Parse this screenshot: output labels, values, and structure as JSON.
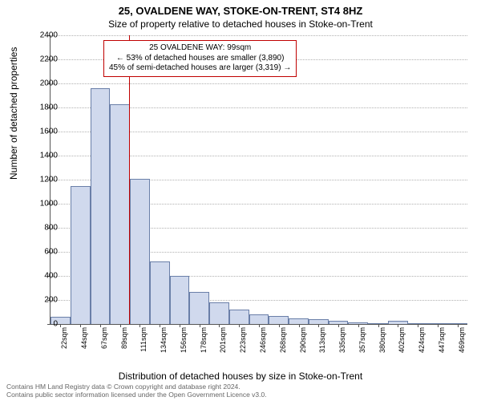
{
  "title": "25, OVALDENE WAY, STOKE-ON-TRENT, ST4 8HZ",
  "subtitle": "Size of property relative to detached houses in Stoke-on-Trent",
  "ylabel": "Number of detached properties",
  "xlabel": "Distribution of detached houses by size in Stoke-on-Trent",
  "chart": {
    "type": "histogram",
    "ylim": [
      0,
      2400
    ],
    "ytick_step": 200,
    "yticks": [
      0,
      200,
      400,
      600,
      800,
      1000,
      1200,
      1400,
      1600,
      1800,
      2000,
      2200,
      2400
    ],
    "bar_fill": "#d0d9ed",
    "bar_stroke": "#6a7fa8",
    "grid_color": "#b0b0b0",
    "background": "#ffffff",
    "bar_width_ratio": 1.0,
    "categories": [
      "22sqm",
      "44sqm",
      "67sqm",
      "89sqm",
      "111sqm",
      "134sqm",
      "156sqm",
      "178sqm",
      "201sqm",
      "223sqm",
      "246sqm",
      "268sqm",
      "290sqm",
      "313sqm",
      "335sqm",
      "357sqm",
      "380sqm",
      "402sqm",
      "424sqm",
      "447sqm",
      "469sqm"
    ],
    "values": [
      60,
      1150,
      1960,
      1830,
      1210,
      520,
      400,
      270,
      180,
      120,
      80,
      70,
      50,
      40,
      25,
      15,
      10,
      30,
      0,
      0,
      8
    ],
    "reference_value_sqm": 99,
    "reference_color": "#c00000",
    "annotation": {
      "line1": "25 OVALDENE WAY: 99sqm",
      "line2": "← 53% of detached houses are smaller (3,890)",
      "line3": "45% of semi-detached houses are larger (3,319) →",
      "border_color": "#c00000",
      "fontsize": 10
    }
  },
  "footer": {
    "line1": "Contains HM Land Registry data © Crown copyright and database right 2024.",
    "line2": "Contains public sector information licensed under the Open Government Licence v3.0."
  }
}
